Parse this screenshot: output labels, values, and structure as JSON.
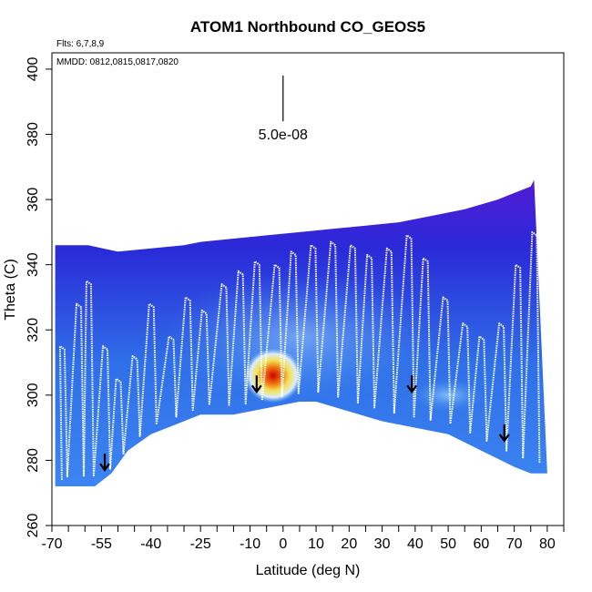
{
  "chart_data": {
    "type": "heatmap",
    "title": "ATOM1 Northbound CO_GEOS5",
    "xlabel": "Latitude (deg N)",
    "ylabel": "Theta (C)",
    "xlim": [
      -70,
      85
    ],
    "ylim": [
      260,
      405
    ],
    "x_ticks": [
      -70,
      -55,
      -40,
      -25,
      -10,
      0,
      10,
      20,
      30,
      40,
      50,
      60,
      70,
      80
    ],
    "x_ticks_minor": [
      -65,
      -60,
      -50,
      -45,
      -35,
      -30,
      -20,
      -15,
      -5,
      5,
      15,
      25,
      35,
      45,
      55,
      65,
      75,
      85
    ],
    "x_tick_labels": [
      "-70",
      "-55",
      "-40",
      "-25",
      "-10",
      "0",
      "10",
      "20",
      "30",
      "40",
      "50",
      "60",
      "70",
      "80"
    ],
    "y_ticks": [
      260,
      280,
      300,
      320,
      340,
      360,
      380,
      400
    ],
    "y_tick_labels": [
      "260",
      "280",
      "300",
      "320",
      "340",
      "360",
      "380",
      "400"
    ],
    "flights_label": "Flts: 6,7,8,9",
    "dates_label": "MMDD: 0812,0815,0817,0820",
    "scale_bar": {
      "label": "5.0e-08",
      "x": 0,
      "y_top": 398,
      "y_bottom": 384
    },
    "top_boundary": {
      "lat": [
        -69,
        -59,
        -50,
        -40,
        -30,
        -25,
        -15,
        -5,
        5,
        15,
        25,
        35,
        45,
        55,
        65,
        70,
        75,
        76
      ],
      "theta": [
        346,
        346,
        344,
        345,
        346,
        347,
        348,
        349,
        350,
        351,
        352,
        353,
        355,
        357,
        360,
        362,
        364,
        366
      ]
    },
    "bottom_boundary": {
      "lat": [
        -69,
        -57,
        -52,
        -47,
        -40,
        -30,
        -25,
        -15,
        -5,
        5,
        10,
        20,
        30,
        40,
        50,
        60,
        70,
        75,
        80
      ],
      "theta": [
        272,
        272,
        276,
        283,
        288,
        292,
        294,
        294,
        296,
        298,
        298,
        295,
        292,
        290,
        288,
        283,
        278,
        276,
        276
      ]
    },
    "hotspot": {
      "lat": -3,
      "theta": 306,
      "description": "peak concentration region"
    },
    "arrows": [
      {
        "lat": -54,
        "theta": 277
      },
      {
        "lat": -8,
        "theta": 301
      },
      {
        "lat": 39,
        "theta": 301
      },
      {
        "lat": 67,
        "theta": 286
      }
    ],
    "flight_track_profiles": [
      {
        "lat": -67,
        "top": 315
      },
      {
        "lat": -62,
        "top": 328
      },
      {
        "lat": -59,
        "top": 335
      },
      {
        "lat": -54,
        "top": 315
      },
      {
        "lat": -50,
        "top": 305
      },
      {
        "lat": -45,
        "top": 312
      },
      {
        "lat": -40,
        "top": 328
      },
      {
        "lat": -34,
        "top": 318
      },
      {
        "lat": -29,
        "top": 330
      },
      {
        "lat": -24,
        "top": 326
      },
      {
        "lat": -18,
        "top": 334
      },
      {
        "lat": -13,
        "top": 338
      },
      {
        "lat": -8,
        "top": 341
      },
      {
        "lat": -2,
        "top": 340
      },
      {
        "lat": 3,
        "top": 344
      },
      {
        "lat": 9,
        "top": 346
      },
      {
        "lat": 15,
        "top": 347
      },
      {
        "lat": 21,
        "top": 346
      },
      {
        "lat": 26,
        "top": 343
      },
      {
        "lat": 32,
        "top": 345
      },
      {
        "lat": 38,
        "top": 349
      },
      {
        "lat": 43,
        "top": 342
      },
      {
        "lat": 49,
        "top": 330
      },
      {
        "lat": 55,
        "top": 322
      },
      {
        "lat": 60,
        "top": 318
      },
      {
        "lat": 66,
        "top": 322
      },
      {
        "lat": 71,
        "top": 340
      },
      {
        "lat": 76,
        "top": 350
      }
    ]
  }
}
